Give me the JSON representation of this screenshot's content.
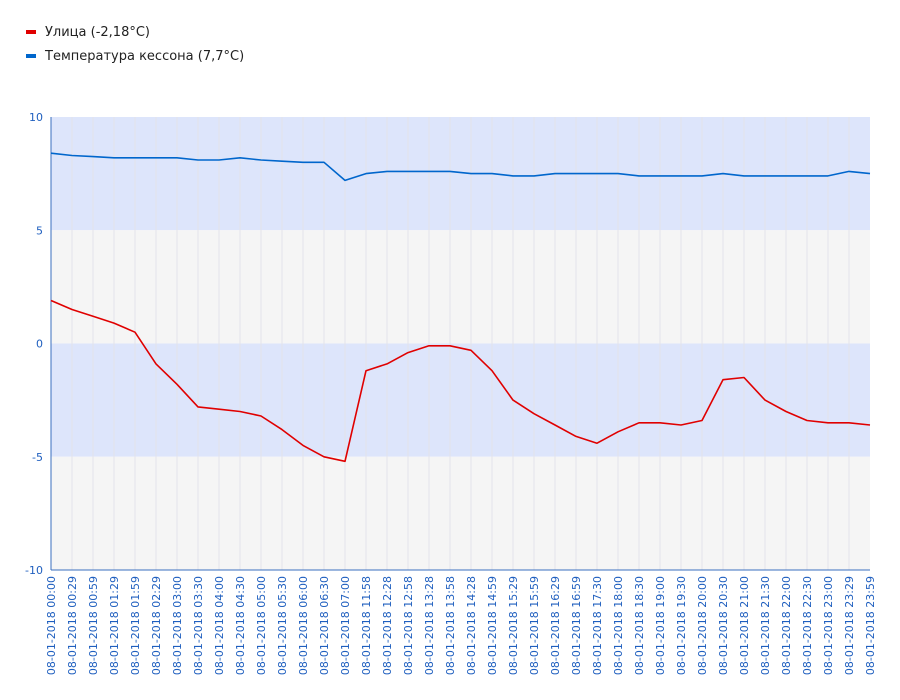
{
  "chart_data": {
    "type": "line",
    "title": "",
    "xlabel": "",
    "ylabel": "",
    "ylim": [
      -10,
      10
    ],
    "yticks": [
      10,
      5,
      0,
      -5,
      -10
    ],
    "grid": true,
    "legend_placement": "top-left",
    "x_tick_labels": [
      "08-01-2018 00:00",
      "08-01-2018 00:29",
      "08-01-2018 00:59",
      "08-01-2018 01:29",
      "08-01-2018 01:59",
      "08-01-2018 02:29",
      "08-01-2018 03:00",
      "08-01-2018 03:30",
      "08-01-2018 04:00",
      "08-01-2018 04:30",
      "08-01-2018 05:00",
      "08-01-2018 05:30",
      "08-01-2018 06:00",
      "08-01-2018 06:30",
      "08-01-2018 07:00",
      "08-01-2018 11:58",
      "08-01-2018 12:28",
      "08-01-2018 12:58",
      "08-01-2018 13:28",
      "08-01-2018 13:58",
      "08-01-2018 14:28",
      "08-01-2018 14:59",
      "08-01-2018 15:29",
      "08-01-2018 15:59",
      "08-01-2018 16:29",
      "08-01-2018 16:59",
      "08-01-2018 17:30",
      "08-01-2018 18:00",
      "08-01-2018 18:30",
      "08-01-2018 19:00",
      "08-01-2018 19:30",
      "08-01-2018 20:00",
      "08-01-2018 20:30",
      "08-01-2018 21:00",
      "08-01-2018 21:30",
      "08-01-2018 22:00",
      "08-01-2018 22:30",
      "08-01-2018 23:00",
      "08-01-2018 23:29",
      "08-01-2018 23:59"
    ],
    "series": [
      {
        "name": "Улица (-2,18°C)",
        "color": "#e00000",
        "values": [
          1.9,
          1.5,
          1.2,
          0.9,
          0.5,
          -0.9,
          -1.8,
          -2.8,
          -2.9,
          -3.0,
          -3.2,
          -3.8,
          -4.5,
          -5.0,
          -5.2,
          -1.2,
          -0.9,
          -0.4,
          -0.1,
          -0.1,
          -0.3,
          -1.2,
          -2.5,
          -3.1,
          -3.6,
          -4.1,
          -4.4,
          -3.9,
          -3.5,
          -3.5,
          -3.6,
          -3.4,
          -1.6,
          -1.5,
          -2.5,
          -3.0,
          -3.4,
          -3.5,
          -3.5,
          -3.6
        ]
      },
      {
        "name": "Температура кессона (7,7°C)",
        "color": "#0066cc",
        "values": [
          8.4,
          8.3,
          8.25,
          8.2,
          8.2,
          8.2,
          8.2,
          8.1,
          8.1,
          8.2,
          8.1,
          8.05,
          8.0,
          8.0,
          7.2,
          7.5,
          7.6,
          7.6,
          7.6,
          7.6,
          7.5,
          7.5,
          7.4,
          7.4,
          7.5,
          7.5,
          7.5,
          7.5,
          7.4,
          7.4,
          7.4,
          7.4,
          7.5,
          7.4,
          7.4,
          7.4,
          7.4,
          7.4,
          7.6,
          7.5
        ]
      }
    ]
  }
}
